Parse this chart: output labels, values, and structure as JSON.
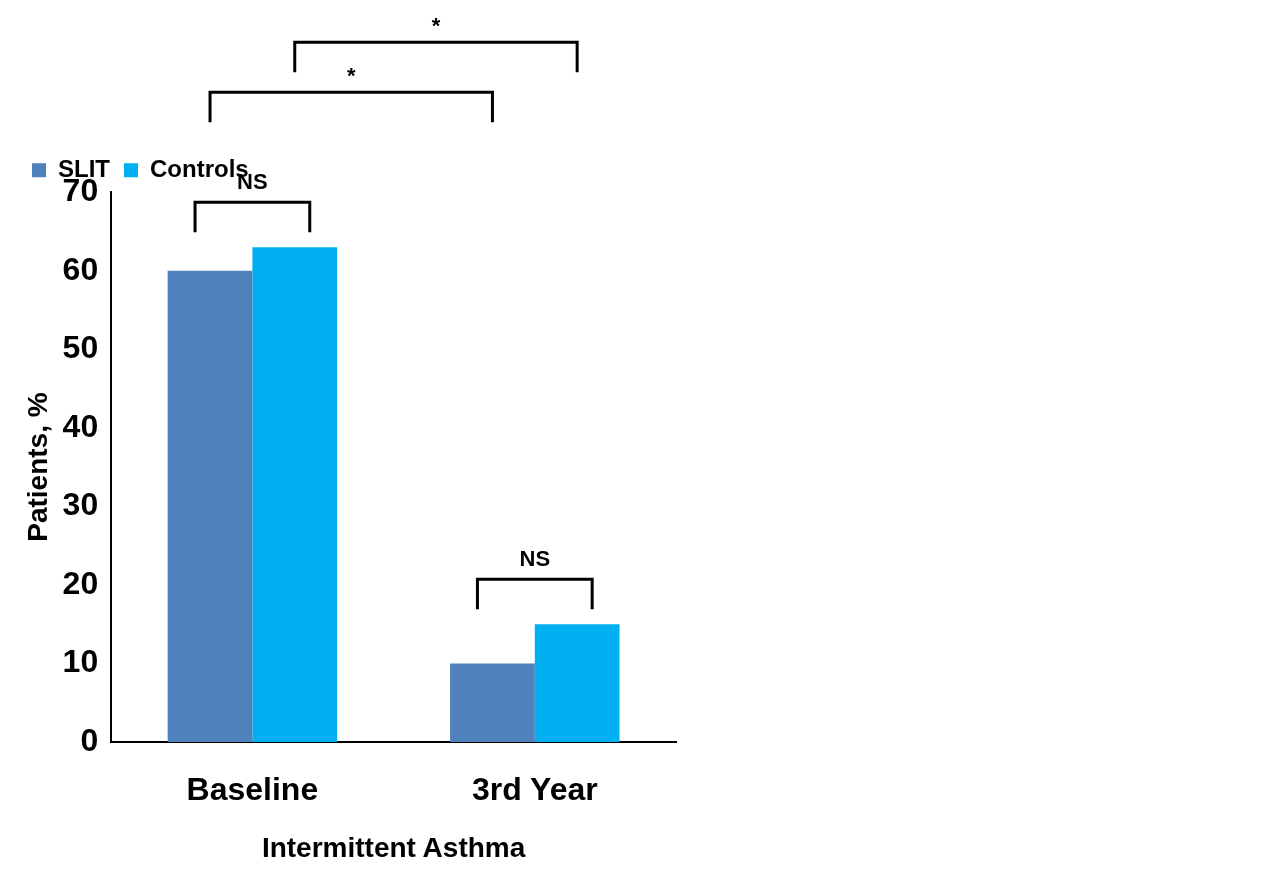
{
  "chart_data": {
    "type": "bar",
    "categories": [
      "Baseline",
      "3rd Year"
    ],
    "series": [
      {
        "name": "SLIT",
        "color": "#4f81bd",
        "values": [
          60,
          10
        ]
      },
      {
        "name": "Controls",
        "color": "#00b0f0",
        "values": [
          63,
          15
        ]
      }
    ],
    "xlabel": "Intermittent Asthma",
    "ylabel": "Patients, %",
    "ylim": [
      0,
      70
    ],
    "yticks": [
      0,
      10,
      20,
      30,
      40,
      50,
      60,
      70
    ],
    "grid": false,
    "legend": "top left",
    "annotations": [
      "NS",
      "NS",
      "*",
      "*"
    ]
  }
}
